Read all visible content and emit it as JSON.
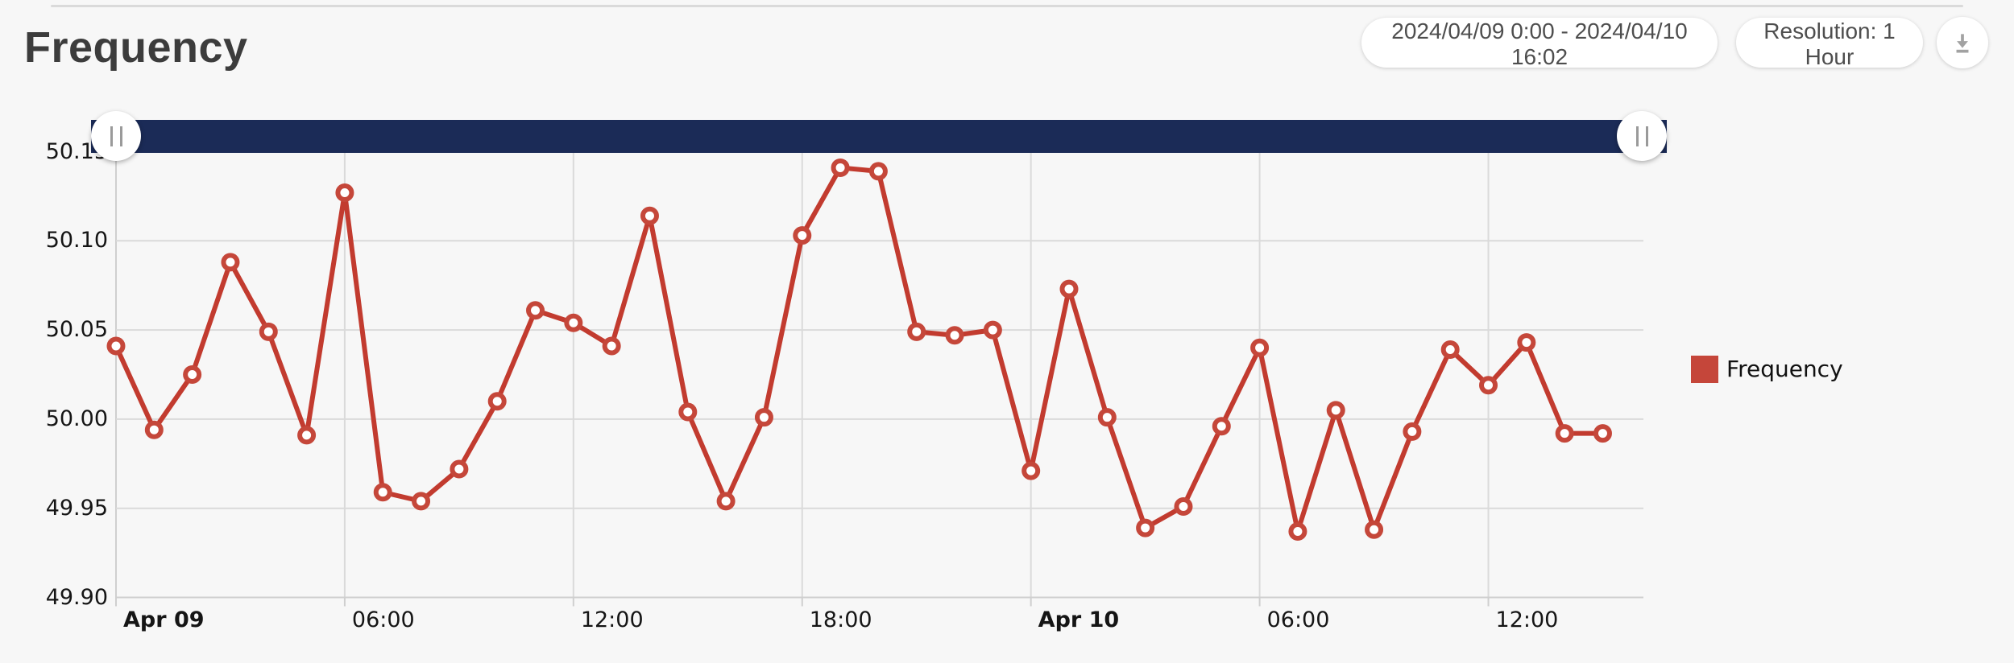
{
  "header": {
    "title": "Frequency",
    "date_range_label": "2024/04/09 0:00  -  2024/04/10 16:02",
    "resolution_label": "Resolution: 1 Hour",
    "download_icon": "download-icon"
  },
  "colors": {
    "line": "#c23b2f",
    "marker_ring": "#c5473a",
    "legend_swatch": "#c5463a",
    "range_bar_navy": "#1b2b57",
    "grid": "#dadada",
    "axis_line": "#cfcfcf",
    "page_background": "#f7f7f7"
  },
  "chart_data": {
    "type": "line",
    "title": "Frequency",
    "x_start": "2024/04/09 00:00",
    "x_step_hours": 1,
    "grid": "on",
    "ylim": [
      49.9,
      50.15
    ],
    "y_tick_step": 0.05,
    "y_tick_labels": [
      "50.15",
      "50.10",
      "50.05",
      "50.00",
      "49.95",
      "49.90"
    ],
    "x_ticks": [
      {
        "index": 0,
        "label": "Apr 09",
        "bold": true
      },
      {
        "index": 6,
        "label": "06:00",
        "bold": false
      },
      {
        "index": 12,
        "label": "12:00",
        "bold": false
      },
      {
        "index": 18,
        "label": "18:00",
        "bold": false
      },
      {
        "index": 24,
        "label": "Apr 10",
        "bold": true
      },
      {
        "index": 30,
        "label": "06:00",
        "bold": false
      },
      {
        "index": 36,
        "label": "12:00",
        "bold": false
      }
    ],
    "legend": {
      "label": "Frequency",
      "position": "right"
    },
    "series": [
      {
        "name": "Frequency",
        "values": [
          50.041,
          49.994,
          50.025,
          50.088,
          50.049,
          49.991,
          50.127,
          49.959,
          49.954,
          49.972,
          50.01,
          50.061,
          50.054,
          50.041,
          50.114,
          50.004,
          49.954,
          50.001,
          50.103,
          50.141,
          50.139,
          50.049,
          50.047,
          50.05,
          49.971,
          50.073,
          50.001,
          49.939,
          49.951,
          49.996,
          50.04,
          49.937,
          50.005,
          49.938,
          49.993,
          50.039,
          50.019,
          50.043,
          49.992,
          49.992
        ]
      }
    ]
  }
}
